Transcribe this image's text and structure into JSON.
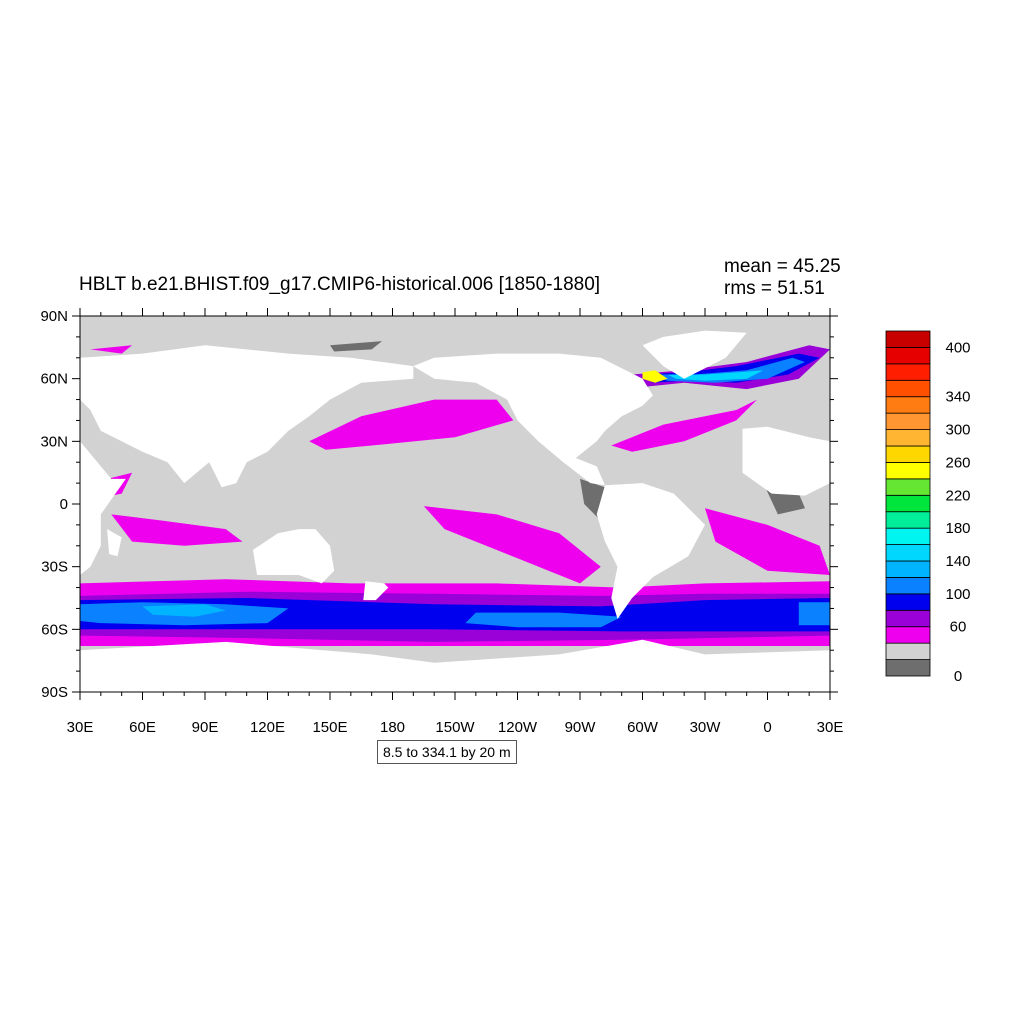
{
  "title": "HBLT b.e21.BHIST.f09_g17.CMIP6-historical.006 [1850-1880]",
  "stats": {
    "mean": "mean = 45.25",
    "rms": "rms = 51.51"
  },
  "range_label": "8.5 to 334.1 by 20 m",
  "map": {
    "projection": "cylindrical-equidistant",
    "lon_range": [
      30,
      390
    ],
    "lat_range": [
      -90,
      90
    ],
    "lon_ticks": [
      "30E",
      "60E",
      "90E",
      "120E",
      "150E",
      "180",
      "150W",
      "120W",
      "90W",
      "60W",
      "30W",
      "0",
      "30E"
    ],
    "lat_ticks": [
      "90N",
      "60N",
      "30N",
      "0",
      "30S",
      "60S",
      "90S"
    ],
    "land_color": "#ffffff"
  },
  "colorbar": {
    "levels": [
      "0",
      "20",
      "40",
      "60",
      "80",
      "100",
      "120",
      "140",
      "160",
      "180",
      "200",
      "220",
      "240",
      "260",
      "280",
      "300",
      "320",
      "340",
      "360",
      "380",
      "400"
    ],
    "labels": [
      "400",
      "340",
      "300",
      "260",
      "220",
      "180",
      "140",
      "100",
      "60",
      "0"
    ],
    "colors": [
      "#6e6e6e",
      "#d2d2d2",
      "#ee00ee",
      "#9a00d8",
      "#0000ee",
      "#0a82ff",
      "#00b4ff",
      "#00d7ff",
      "#00f4f0",
      "#00ee9a",
      "#00e63c",
      "#64e632",
      "#ffff00",
      "#ffd700",
      "#ffb432",
      "#ff9632",
      "#ff7c12",
      "#ff5000",
      "#ff1e00",
      "#e60000",
      "#c80000"
    ]
  }
}
